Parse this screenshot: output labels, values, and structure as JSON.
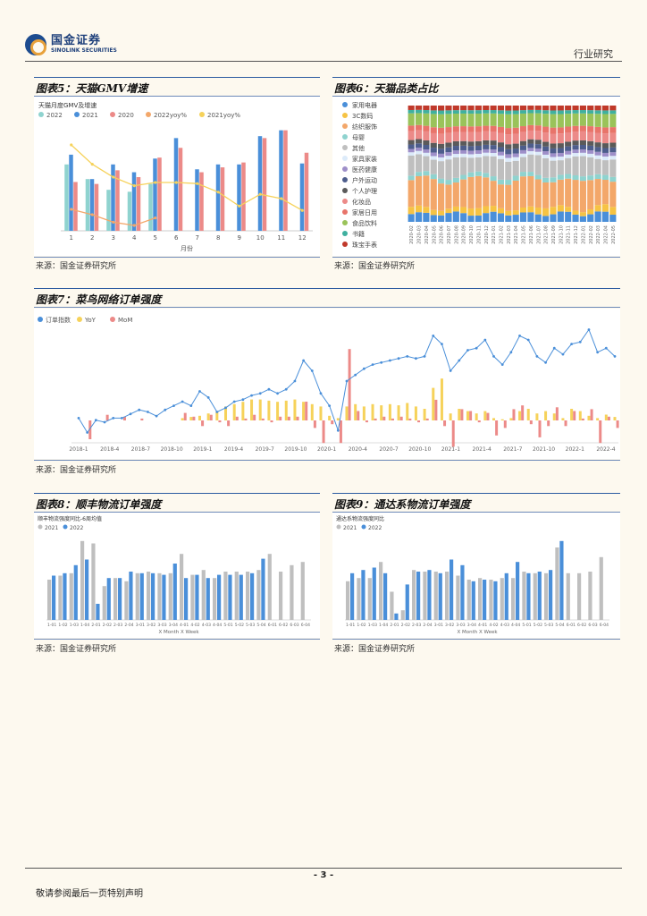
{
  "header": {
    "logo_cn": "国金证券",
    "logo_en": "SINOLINK SECURITIES",
    "section": "行业研究"
  },
  "figures": [
    {
      "id": "fig5",
      "title": "图表5：天猫GMV增速",
      "source": "来源：国金证券研究所"
    },
    {
      "id": "fig6",
      "title": "图表6：天猫品类占比",
      "source": "来源：国金证券研究所"
    },
    {
      "id": "fig7",
      "title": "图表7：菜鸟网络订单强度",
      "source": "来源：国金证券研究所"
    },
    {
      "id": "fig8",
      "title": "图表8：顺丰物流订单强度",
      "source": "来源：国金证券研究所"
    },
    {
      "id": "fig9",
      "title": "图表9：通达系物流订单强度",
      "source": "来源：国金证券研究所"
    }
  ],
  "footer": {
    "page": "- 3 -",
    "note": "敬请参阅最后一页特别声明"
  },
  "chart_data": [
    {
      "id": "fig5",
      "type": "bar",
      "title": "天猫月度GMV及增速",
      "xlabel": "月份",
      "categories": [
        "1",
        "2",
        "3",
        "4",
        "5",
        "6",
        "7",
        "8",
        "9",
        "10",
        "11",
        "12"
      ],
      "series": [
        {
          "name": "2022",
          "color": "#8fd3cf",
          "values": [
            68,
            53,
            42,
            40,
            48,
            null,
            null,
            null,
            null,
            null,
            null,
            null
          ]
        },
        {
          "name": "2021",
          "color": "#4a8fd9",
          "values": [
            78,
            53,
            68,
            60,
            74,
            95,
            63,
            68,
            68,
            97,
            103,
            69
          ]
        },
        {
          "name": "2020",
          "color": "#ec8a88",
          "values": [
            50,
            48,
            62,
            55,
            75,
            85,
            60,
            65,
            70,
            95,
            103,
            80
          ]
        },
        {
          "name": "2022yoy%",
          "color": "#f3a76a",
          "type": "line",
          "values": [
            20,
            15,
            8,
            5,
            12,
            null,
            null,
            null,
            null,
            null,
            null,
            null
          ]
        },
        {
          "name": "2021yoy%",
          "color": "#f6d25a",
          "type": "line",
          "values": [
            80,
            62,
            50,
            42,
            45,
            45,
            44,
            36,
            23,
            34,
            30,
            19
          ]
        }
      ]
    },
    {
      "id": "fig6",
      "type": "bar",
      "stacked": true,
      "legend": [
        "家用电器",
        "3C数码",
        "纺织服饰",
        "母婴",
        "其他",
        "家具家装",
        "医药健康",
        "户外运动",
        "个人护理",
        "化妆品",
        "家居日用",
        "食品饮料",
        "书籍",
        "珠宝手表"
      ],
      "colors": [
        "#4a8fd9",
        "#f6c344",
        "#f3a76a",
        "#8fd3cf",
        "#bfbfbf",
        "#dcebfa",
        "#9e8fc9",
        "#4d5d8c",
        "#5a5a5a",
        "#ec8a88",
        "#e8746a",
        "#9ac35a",
        "#3fb09f",
        "#c0392b"
      ],
      "categories": [
        "2020-02",
        "2020-03",
        "2020-04",
        "2020-05",
        "2020-06",
        "2020-07",
        "2020-08",
        "2020-09",
        "2020-10",
        "2020-11",
        "2020-12",
        "2021-01",
        "2021-02",
        "2021-03",
        "2021-04",
        "2021-05",
        "2021-06",
        "2021-07",
        "2021-08",
        "2021-09",
        "2021-10",
        "2021-11",
        "2021-12",
        "2022-01",
        "2022-02",
        "2022-03",
        "2022-04",
        "2022-05"
      ]
    },
    {
      "id": "fig7",
      "type": "line",
      "legend": [
        "订单指数",
        "YoY",
        "MoM"
      ],
      "colors": [
        "#4a8fd9",
        "#f6d25a",
        "#ec8a88"
      ],
      "x_ticks": [
        "2018-1",
        "2018-4",
        "2018-7",
        "2018-10",
        "2019-1",
        "2019-4",
        "2019-7",
        "2019-10",
        "2020-1",
        "2020-4",
        "2020-7",
        "2020-10",
        "2021-1",
        "2021-4",
        "2021-7",
        "2021-10",
        "2022-1",
        "2022-4"
      ],
      "index": [
        52,
        45,
        51,
        50,
        52,
        52,
        54,
        56,
        55,
        53,
        56,
        58,
        60,
        58,
        65,
        62,
        55,
        57,
        60,
        61,
        63,
        64,
        66,
        64,
        66,
        70,
        80,
        75,
        64,
        58,
        46,
        70,
        73,
        76,
        78,
        79,
        80,
        81,
        82,
        81,
        82,
        92,
        88,
        75,
        80,
        85,
        86,
        90,
        82,
        78,
        84,
        92,
        90,
        82,
        79,
        86,
        83,
        88,
        89,
        95,
        84,
        86,
        82
      ],
      "yoy": [
        0,
        0,
        0,
        0,
        0,
        0,
        0,
        0,
        0,
        0,
        0,
        0,
        2,
        3,
        4,
        6,
        8,
        12,
        14,
        16,
        18,
        18,
        17,
        16,
        17,
        18,
        16,
        14,
        12,
        4,
        2,
        12,
        14,
        12,
        14,
        13,
        14,
        13,
        15,
        12,
        10,
        28,
        36,
        6,
        10,
        8,
        6,
        8,
        2,
        1,
        2,
        8,
        10,
        6,
        8,
        6,
        2,
        10,
        8,
        4,
        2,
        5,
        3
      ],
      "mom": [
        0,
        -10,
        0,
        3,
        0,
        2,
        0,
        1,
        0,
        0,
        0,
        0,
        4,
        2,
        -3,
        3,
        -1,
        -3,
        2,
        1,
        3,
        1,
        -1,
        2,
        2,
        2,
        10,
        -4,
        -12,
        -2,
        -12,
        38,
        5,
        -1,
        1,
        2,
        1,
        2,
        1,
        -1,
        1,
        11,
        -3,
        -14,
        6,
        5,
        -1,
        4,
        -8,
        -4,
        6,
        8,
        -2,
        -9,
        -3,
        7,
        -3,
        5,
        1,
        6,
        -12,
        2,
        -4
      ]
    },
    {
      "id": "fig8",
      "type": "bar",
      "title": "顺丰物流强度同比-6周均值",
      "xlabel": "X Month X Week",
      "legend": [
        "2021",
        "2022"
      ],
      "colors": [
        "#bfbfbf",
        "#4a8fd9"
      ],
      "x_ticks": [
        "1-01",
        "1-02",
        "1-03",
        "1-04",
        "2-01",
        "2-02",
        "2-03",
        "2-04",
        "3-01",
        "3-02",
        "3-03",
        "3-04",
        "4-01",
        "4-02",
        "4-03",
        "4-04",
        "5-01",
        "5-02",
        "5-03",
        "5-04",
        "6-01",
        "6-02",
        "6-03",
        "6-04"
      ],
      "series": [
        {
          "name": "2021",
          "values": [
            50,
            55,
            58,
            98,
            95,
            42,
            52,
            48,
            58,
            60,
            58,
            58,
            82,
            56,
            62,
            52,
            60,
            60,
            60,
            62,
            82,
            60,
            68,
            72
          ]
        },
        {
          "name": "2022",
          "values": [
            55,
            58,
            68,
            75,
            20,
            52,
            52,
            60,
            58,
            58,
            56,
            70,
            52,
            56,
            52,
            56,
            56,
            56,
            58,
            76,
            null,
            null,
            null,
            null
          ]
        }
      ]
    },
    {
      "id": "fig9",
      "type": "bar",
      "title": "通达系物流强度同比",
      "xlabel": "X Month X Week",
      "legend": [
        "2021",
        "2022"
      ],
      "colors": [
        "#bfbfbf",
        "#4a8fd9"
      ],
      "x_ticks": [
        "1-01",
        "1-02",
        "1-03",
        "1-04",
        "2-01",
        "2-02",
        "2-03",
        "2-04",
        "3-01",
        "3-02",
        "3-03",
        "3-04",
        "4-01",
        "4-02",
        "4-03",
        "4-04",
        "5-01",
        "5-02",
        "5-03",
        "5-04",
        "6-01",
        "6-02",
        "6-03",
        "6-04"
      ],
      "series": [
        {
          "name": "2021",
          "values": [
            48,
            52,
            52,
            72,
            35,
            12,
            62,
            60,
            60,
            60,
            55,
            50,
            52,
            50,
            52,
            52,
            60,
            58,
            58,
            90,
            58,
            58,
            60,
            78
          ]
        },
        {
          "name": "2022",
          "values": [
            58,
            62,
            65,
            58,
            8,
            44,
            60,
            62,
            58,
            75,
            68,
            48,
            50,
            48,
            58,
            72,
            58,
            60,
            62,
            98,
            null,
            null,
            null,
            null
          ]
        }
      ]
    }
  ]
}
